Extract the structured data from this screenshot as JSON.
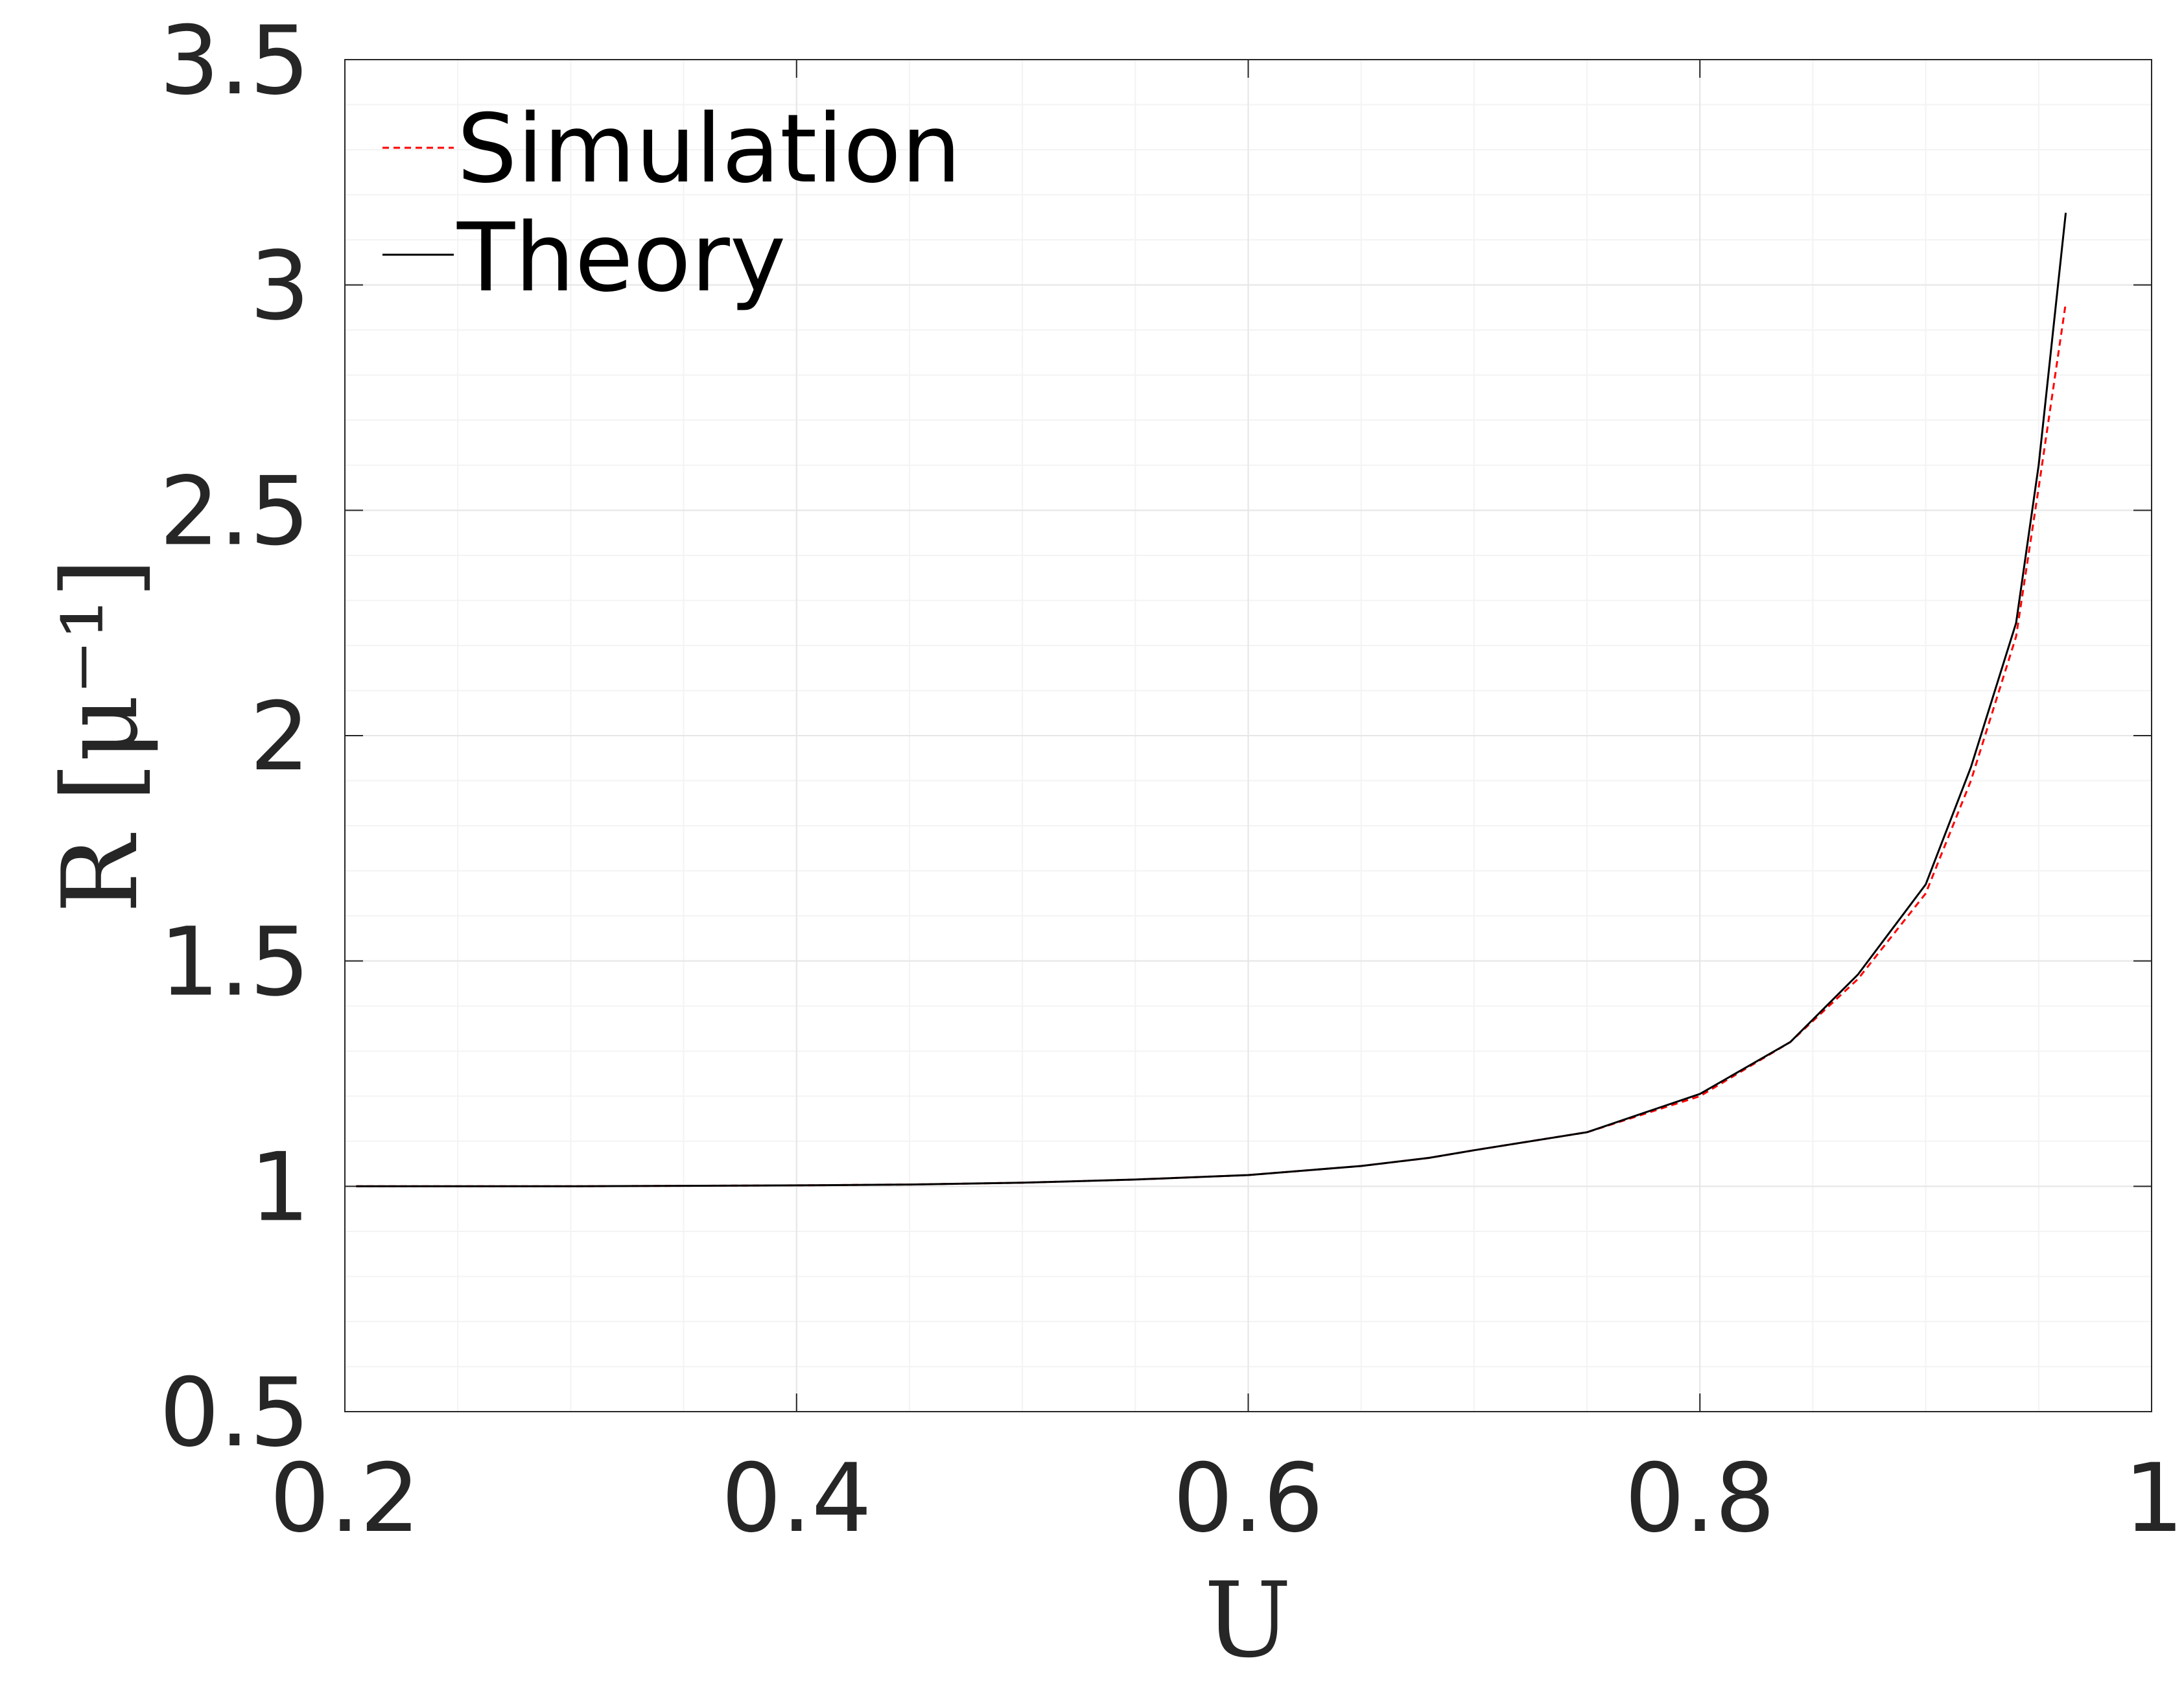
{
  "chart_data": {
    "type": "line",
    "xlabel": "U",
    "ylabel": "R [μ⁻¹]",
    "xlim": [
      0.2,
      1.0
    ],
    "ylim": [
      0.5,
      3.5
    ],
    "xticks": [
      "0.2",
      "0.4",
      "0.6",
      "0.8",
      "1"
    ],
    "yticks": [
      "0.5",
      "1",
      "1.5",
      "2",
      "2.5",
      "3",
      "3.5"
    ],
    "grid": true,
    "minor_grid": true,
    "legend_position": "top-left",
    "series": [
      {
        "name": "Simulation",
        "color": "#ff0000",
        "style": "dashed",
        "x": [
          0.205,
          0.25,
          0.3,
          0.35,
          0.4,
          0.45,
          0.5,
          0.55,
          0.6,
          0.65,
          0.68,
          0.7,
          0.75,
          0.8,
          0.84,
          0.87,
          0.9,
          0.92,
          0.94,
          0.95,
          0.962
        ],
        "y": [
          1.0,
          1.0,
          1.0,
          1.001,
          1.002,
          1.004,
          1.008,
          1.015,
          1.025,
          1.045,
          1.063,
          1.08,
          1.12,
          1.2,
          1.32,
          1.46,
          1.65,
          1.9,
          2.22,
          2.55,
          2.96
        ]
      },
      {
        "name": "Theory",
        "color": "#000000",
        "style": "solid",
        "x": [
          0.205,
          0.25,
          0.3,
          0.35,
          0.4,
          0.45,
          0.5,
          0.55,
          0.6,
          0.65,
          0.68,
          0.7,
          0.75,
          0.8,
          0.84,
          0.87,
          0.9,
          0.92,
          0.94,
          0.95,
          0.962
        ],
        "y": [
          1.0,
          1.0,
          1.0,
          1.001,
          1.002,
          1.004,
          1.008,
          1.015,
          1.025,
          1.045,
          1.063,
          1.08,
          1.12,
          1.205,
          1.32,
          1.47,
          1.67,
          1.93,
          2.25,
          2.6,
          3.16
        ]
      }
    ]
  }
}
